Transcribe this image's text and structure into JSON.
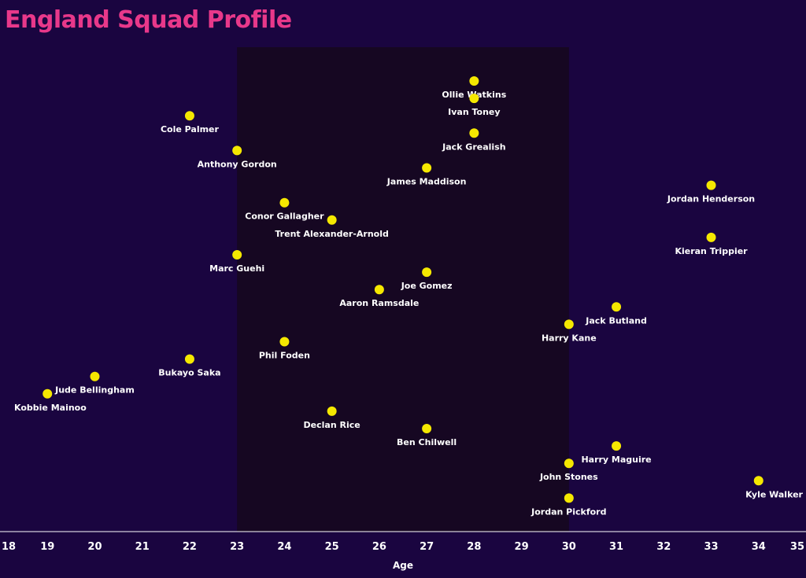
{
  "chart_data": {
    "type": "scatter",
    "title": "England Squad Profile",
    "xlabel": "Age",
    "ylabel": "",
    "xlim": [
      18,
      35
    ],
    "xticks": [
      18,
      19,
      20,
      21,
      22,
      23,
      24,
      25,
      26,
      27,
      28,
      29,
      30,
      31,
      32,
      33,
      34,
      35
    ],
    "highlight_band": [
      23,
      30
    ],
    "grid": false,
    "colors": {
      "background": "#1a0540",
      "band": "#160722",
      "title": "#e8388a",
      "point": "#f5e800",
      "text": "#ffffff",
      "axis": "#ffffff"
    },
    "points": [
      {
        "name": "Ollie Watkins",
        "age": 28,
        "row": 1
      },
      {
        "name": "Ivan Toney",
        "age": 28,
        "row": 2
      },
      {
        "name": "Cole Palmer",
        "age": 22,
        "row": 3
      },
      {
        "name": "Jack Grealish",
        "age": 28,
        "row": 4
      },
      {
        "name": "Anthony Gordon",
        "age": 23,
        "row": 5
      },
      {
        "name": "James Maddison",
        "age": 27,
        "row": 6
      },
      {
        "name": "Jordan Henderson",
        "age": 33,
        "row": 7
      },
      {
        "name": "Conor Gallagher",
        "age": 24,
        "row": 8
      },
      {
        "name": "Trent Alexander-Arnold",
        "age": 25,
        "row": 9
      },
      {
        "name": "Kieran Trippier",
        "age": 33,
        "row": 10
      },
      {
        "name": "Marc Guehi",
        "age": 23,
        "row": 11
      },
      {
        "name": "Joe Gomez",
        "age": 27,
        "row": 12
      },
      {
        "name": "Aaron Ramsdale",
        "age": 26,
        "row": 13
      },
      {
        "name": "Jack Butland",
        "age": 31,
        "row": 14
      },
      {
        "name": "Harry Kane",
        "age": 30,
        "row": 15
      },
      {
        "name": "Phil Foden",
        "age": 24,
        "row": 16
      },
      {
        "name": "Bukayo Saka",
        "age": 22,
        "row": 17
      },
      {
        "name": "Jude Bellingham",
        "age": 20,
        "row": 18
      },
      {
        "name": "Kobbie Mainoo",
        "age": 19,
        "row": 19
      },
      {
        "name": "Declan Rice",
        "age": 25,
        "row": 20
      },
      {
        "name": "Ben Chilwell",
        "age": 27,
        "row": 21
      },
      {
        "name": "Harry Maguire",
        "age": 31,
        "row": 22
      },
      {
        "name": "John Stones",
        "age": 30,
        "row": 23
      },
      {
        "name": "Kyle Walker",
        "age": 34,
        "row": 24
      },
      {
        "name": "Jordan Pickford",
        "age": 30,
        "row": 25
      }
    ]
  }
}
